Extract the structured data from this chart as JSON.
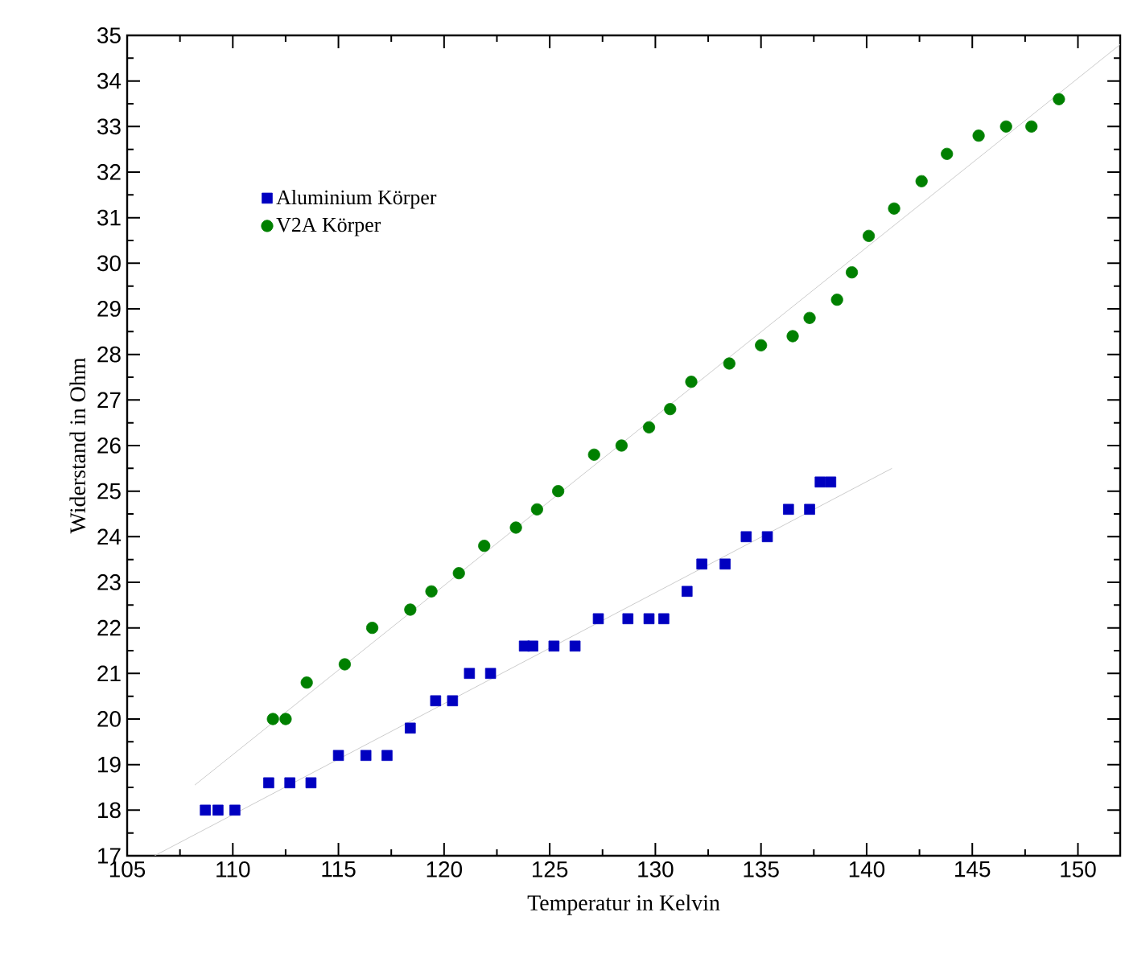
{
  "chart_data": {
    "type": "scatter",
    "xlabel": "Temperatur in Kelvin",
    "ylabel": "Widerstand in Ohm",
    "xlim": [
      105,
      152
    ],
    "ylim": [
      17,
      35
    ],
    "xticks": [
      105,
      110,
      115,
      120,
      125,
      130,
      135,
      140,
      145,
      150
    ],
    "yticks": [
      17,
      18,
      19,
      20,
      21,
      22,
      23,
      24,
      25,
      26,
      27,
      28,
      29,
      30,
      31,
      32,
      33,
      34,
      35
    ],
    "grid": false,
    "legend": "top left",
    "series": [
      {
        "name": "Aluminium Körper",
        "color": "#0000c0",
        "marker": "square",
        "x": [
          108.7,
          109.3,
          110.1,
          111.7,
          112.7,
          113.7,
          115.0,
          116.3,
          117.3,
          118.4,
          119.6,
          120.4,
          121.2,
          122.2,
          123.8,
          124.2,
          125.2,
          126.2,
          127.3,
          128.7,
          129.7,
          130.4,
          131.5,
          132.2,
          133.3,
          134.3,
          135.3,
          136.3,
          137.3,
          137.8,
          138.3
        ],
        "values": [
          18.0,
          18.0,
          18.0,
          18.6,
          18.6,
          18.6,
          19.2,
          19.2,
          19.2,
          19.8,
          20.4,
          20.4,
          21.0,
          21.0,
          21.6,
          21.6,
          21.6,
          21.6,
          22.2,
          22.2,
          22.2,
          22.2,
          22.8,
          23.4,
          23.4,
          24.0,
          24.0,
          24.6,
          24.6,
          25.2,
          25.2
        ]
      },
      {
        "name": "V2A Körper",
        "color": "#008000",
        "marker": "circle",
        "x": [
          111.9,
          112.5,
          113.5,
          115.3,
          116.6,
          118.4,
          119.4,
          120.7,
          121.9,
          123.4,
          124.4,
          125.4,
          127.1,
          128.4,
          129.7,
          130.7,
          131.7,
          133.5,
          135.0,
          136.5,
          137.3,
          138.6,
          139.3,
          140.1,
          141.3,
          142.6,
          143.8,
          145.3,
          146.6,
          147.8,
          149.1
        ],
        "values": [
          20.0,
          20.0,
          20.8,
          21.2,
          22.0,
          22.4,
          22.8,
          23.2,
          23.8,
          24.2,
          24.6,
          25.0,
          25.8,
          26.0,
          26.4,
          26.8,
          27.4,
          27.8,
          28.2,
          28.4,
          28.8,
          29.2,
          29.8,
          30.6,
          31.2,
          31.8,
          32.4,
          32.8,
          33.0,
          33.0,
          33.6
        ]
      },
      {
        "type": "line",
        "color": "#cccccc",
        "marker": "none",
        "x": [
          106.3,
          141.2
        ],
        "values": [
          17.0,
          25.5
        ]
      },
      {
        "type": "line",
        "color": "#cccccc",
        "marker": "none",
        "x": [
          108.2,
          152.0
        ],
        "values": [
          18.55,
          34.8
        ]
      }
    ]
  }
}
